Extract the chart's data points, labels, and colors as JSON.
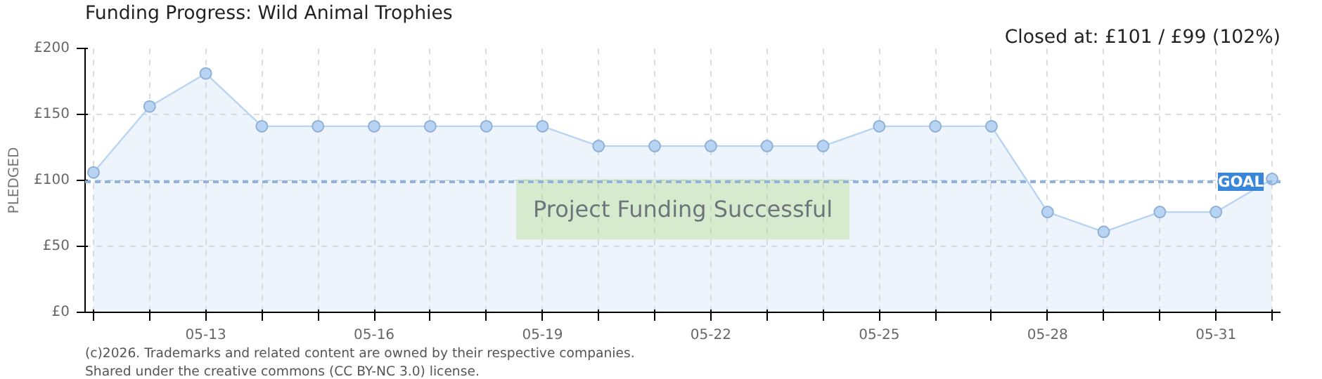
{
  "chart_data": {
    "type": "area",
    "title": "Funding Progress: Wild Animal Trophies",
    "subtitle": "Closed at: £101 / £99 (102%)",
    "ylabel": "PLEDGED",
    "categories": [
      null,
      null,
      "05-13",
      null,
      null,
      "05-16",
      null,
      null,
      "05-19",
      null,
      null,
      "05-22",
      null,
      null,
      "05-25",
      null,
      null,
      "05-28",
      null,
      null,
      "05-31",
      null
    ],
    "series": [
      {
        "color": "#b8d4f2",
        "values": [
          106,
          156,
          181,
          141,
          141,
          141,
          141,
          141,
          141,
          126,
          126,
          126,
          126,
          126,
          141,
          141,
          141,
          76,
          61,
          76,
          76,
          101
        ]
      }
    ],
    "ylim": [
      0,
      200
    ],
    "yticks": [
      {
        "value": 0,
        "label": "£0"
      },
      {
        "value": 50,
        "label": "£50"
      },
      {
        "value": 100,
        "label": "£100"
      },
      {
        "value": 150,
        "label": "£150"
      },
      {
        "value": 200,
        "label": "£200"
      }
    ],
    "ref_lines": [
      {
        "axis": "y",
        "value": 99,
        "label": "GOAL",
        "color": "#8fb3e0",
        "line_style": "dashed"
      }
    ],
    "annotations": [
      "Project Funding Successful",
      "(c)2026. Trademarks and related content are owned by their respective companies.",
      "Shared under the creative commons (CC BY-NC 3.0) license."
    ],
    "grid": true,
    "marker": "circle",
    "line_style": "solid"
  }
}
